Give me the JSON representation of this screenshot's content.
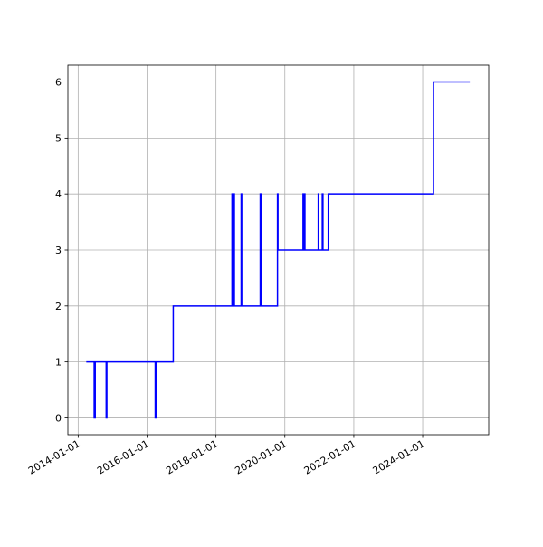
{
  "chart_data": {
    "type": "line",
    "drawstyle": "steps-post",
    "grid": true,
    "x": [
      "2014-03-28",
      "2014-06-20",
      "2014-07-01",
      "2014-10-25",
      "2014-11-01",
      "2016-03-28",
      "2016-04-05",
      "2016-10-05",
      "2018-06-20",
      "2018-06-28",
      "2018-07-05",
      "2018-07-15",
      "2018-09-25",
      "2018-10-01",
      "2019-04-15",
      "2019-04-22",
      "2019-10-15",
      "2019-10-20",
      "2020-07-12",
      "2020-07-20",
      "2020-07-25",
      "2020-08-01",
      "2020-12-20",
      "2020-12-25",
      "2021-02-01",
      "2021-02-08",
      "2021-04-05",
      "2024-04-25",
      "2025-05-15"
    ],
    "series": [
      {
        "color": "#0000ff",
        "values": [
          1,
          0,
          1,
          0,
          1,
          0,
          1,
          2,
          4,
          2,
          4,
          2,
          4,
          2,
          4,
          2,
          4,
          3,
          4,
          3,
          4,
          3,
          4,
          3,
          4,
          3,
          4,
          6,
          6
        ]
      }
    ],
    "xlim": [
      "2013-09-14",
      "2025-12-01"
    ],
    "xticks": [
      "2014-01-01",
      "2016-01-01",
      "2018-01-01",
      "2020-01-01",
      "2022-01-01",
      "2024-01-01"
    ],
    "ylim": [
      -0.3,
      6.3
    ],
    "yticks": [
      0,
      1,
      2,
      3,
      4,
      5,
      6
    ]
  }
}
